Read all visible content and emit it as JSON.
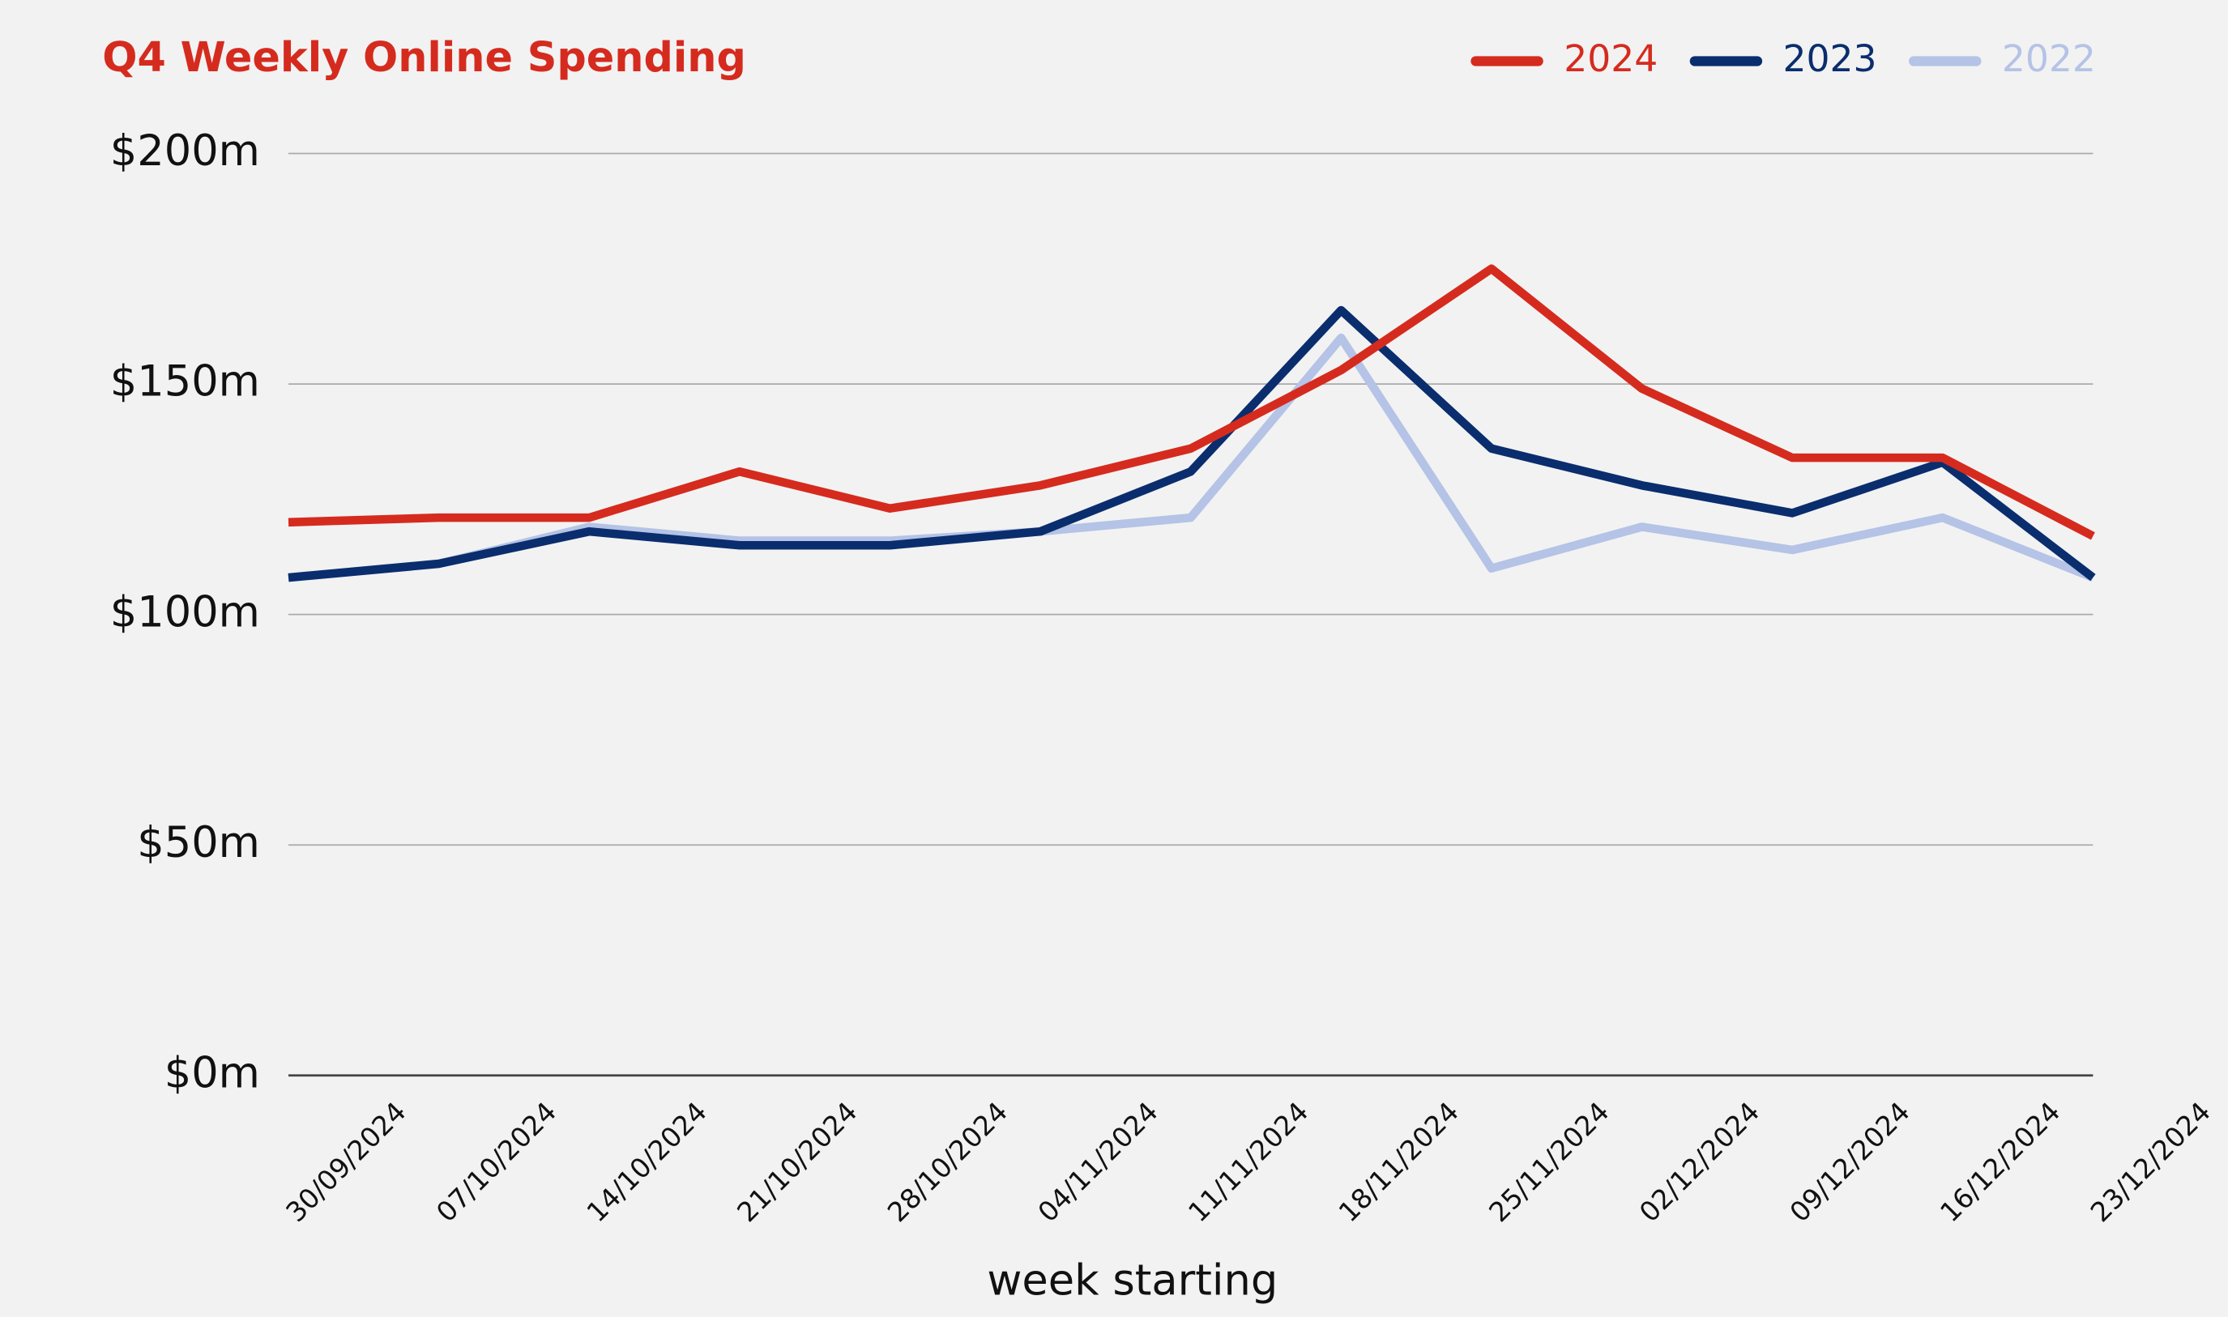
{
  "chart_data": {
    "type": "line",
    "title": "Q4 Weekly Online Spending",
    "x_label": "week starting",
    "categories": [
      "30/09/2024",
      "07/10/2024",
      "14/10/2024",
      "21/10/2024",
      "28/10/2024",
      "04/11/2024",
      "11/11/2024",
      "18/11/2024",
      "25/11/2024",
      "02/12/2024",
      "09/12/2024",
      "16/12/2024",
      "23/12/2024"
    ],
    "series": [
      {
        "name": "2024",
        "color": "#d52b1e",
        "values": [
          120,
          121,
          121,
          131,
          123,
          128,
          136,
          153,
          175,
          149,
          134,
          134,
          117
        ]
      },
      {
        "name": "2023",
        "color": "#0a2d6e",
        "values": [
          108,
          111,
          118,
          115,
          115,
          118,
          131,
          166,
          136,
          128,
          122,
          133,
          108
        ]
      },
      {
        "name": "2022",
        "color": "#b4c3e6",
        "values": [
          108,
          111,
          119,
          116,
          116,
          118,
          121,
          160,
          110,
          119,
          114,
          121,
          108
        ]
      }
    ],
    "ylim": [
      0,
      200
    ],
    "yticks": [
      {
        "value": 0,
        "label": "$0m"
      },
      {
        "value": 50,
        "label": "$50m"
      },
      {
        "value": 100,
        "label": "$100m"
      },
      {
        "value": 150,
        "label": "$150m"
      },
      {
        "value": 200,
        "label": "$200m"
      }
    ],
    "grid": true,
    "legend": "top-right"
  }
}
